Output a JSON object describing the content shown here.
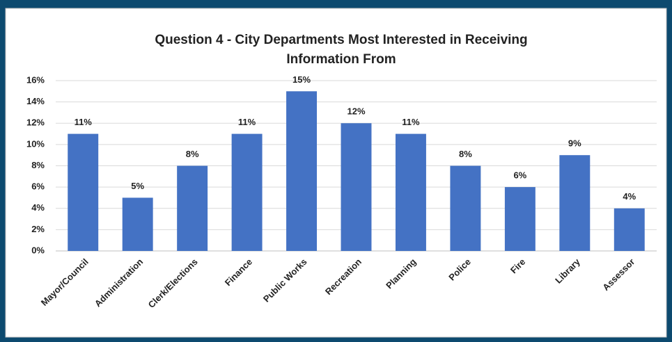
{
  "chart_data": {
    "type": "bar",
    "title": "Question 4 - City Departments Most Interested in Receiving Information From",
    "categories": [
      "Mayor/Council",
      "Administration",
      "Clerk/Elections",
      "Finance",
      "Public Works",
      "Recreation",
      "Planning",
      "Police",
      "Fire",
      "Library",
      "Assessor"
    ],
    "values": [
      11,
      5,
      8,
      11,
      15,
      12,
      11,
      8,
      6,
      9,
      4
    ],
    "value_labels": [
      "11%",
      "5%",
      "8%",
      "11%",
      "15%",
      "12%",
      "11%",
      "8%",
      "6%",
      "9%",
      "4%"
    ],
    "color": "#4472c4",
    "ylim": [
      0,
      16
    ],
    "yticks": [
      {
        "value": 0,
        "label": "0%"
      },
      {
        "value": 2,
        "label": "2%"
      },
      {
        "value": 4,
        "label": "4%"
      },
      {
        "value": 6,
        "label": "6%"
      },
      {
        "value": 8,
        "label": "8%"
      },
      {
        "value": 10,
        "label": "10%"
      },
      {
        "value": 12,
        "label": "12%"
      },
      {
        "value": 14,
        "label": "14%"
      },
      {
        "value": 16,
        "label": "16%"
      }
    ],
    "grid": true
  }
}
